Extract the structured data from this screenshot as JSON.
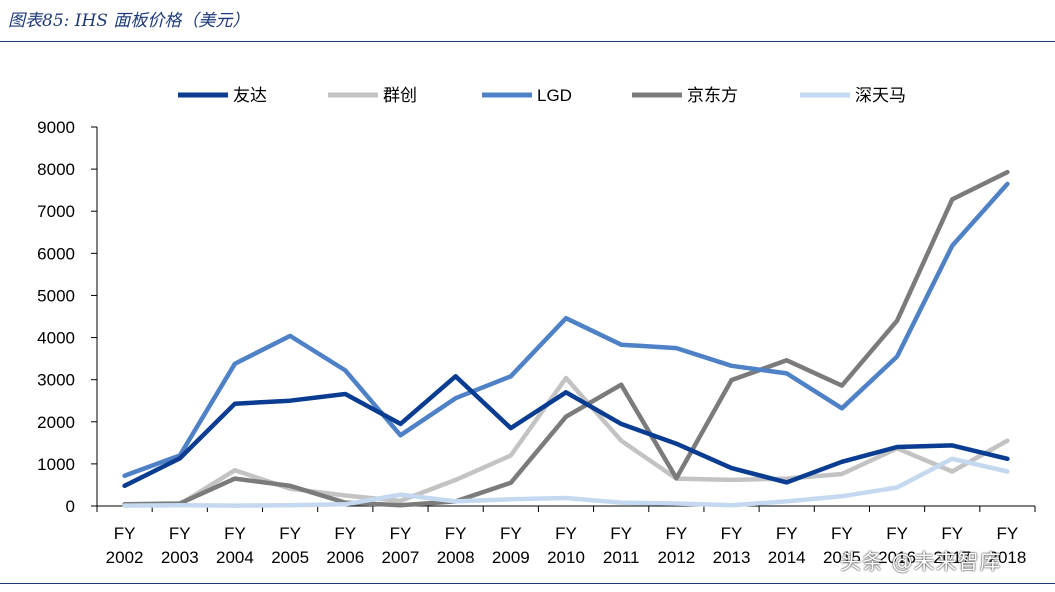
{
  "header": {
    "title": "图表85: IHS 面板价格（美元）"
  },
  "watermark": "头条 @未来智库",
  "chart_data": {
    "type": "line",
    "title": "",
    "xlabel": "",
    "ylabel": "",
    "ylim": [
      0,
      9000
    ],
    "yticks": [
      0,
      1000,
      2000,
      3000,
      4000,
      5000,
      6000,
      7000,
      8000,
      9000
    ],
    "grid": false,
    "legend": "top",
    "x_prefix": "FY",
    "categories": [
      "2002",
      "2003",
      "2004",
      "2005",
      "2006",
      "2007",
      "2008",
      "2009",
      "2010",
      "2011",
      "2012",
      "2013",
      "2014",
      "2015",
      "2016",
      "2017",
      "2018"
    ],
    "series": [
      {
        "name": "友达",
        "color": "#0a3d91",
        "values": [
          480,
          1130,
          2430,
          2500,
          2660,
          1950,
          3080,
          1850,
          2700,
          1950,
          1480,
          900,
          560,
          1050,
          1400,
          1440,
          1120
        ]
      },
      {
        "name": "群创",
        "color": "#c3c3c3",
        "values": [
          20,
          40,
          850,
          410,
          250,
          120,
          620,
          1200,
          3040,
          1550,
          650,
          620,
          650,
          760,
          1370,
          820,
          1550
        ]
      },
      {
        "name": "LGD",
        "color": "#4f81c7",
        "values": [
          720,
          1200,
          3380,
          4040,
          3220,
          1680,
          2560,
          3080,
          4460,
          3830,
          3750,
          3330,
          3150,
          2320,
          3550,
          6180,
          7650
        ]
      },
      {
        "name": "京东方",
        "color": "#7b7b7b",
        "values": [
          40,
          60,
          650,
          480,
          80,
          20,
          110,
          550,
          2120,
          2880,
          660,
          2990,
          3460,
          2860,
          4400,
          7280,
          7930
        ]
      },
      {
        "name": "深天马",
        "color": "#c4d8ef",
        "values": [
          10,
          20,
          10,
          20,
          40,
          270,
          110,
          160,
          190,
          80,
          60,
          20,
          110,
          230,
          440,
          1120,
          820
        ]
      }
    ]
  }
}
